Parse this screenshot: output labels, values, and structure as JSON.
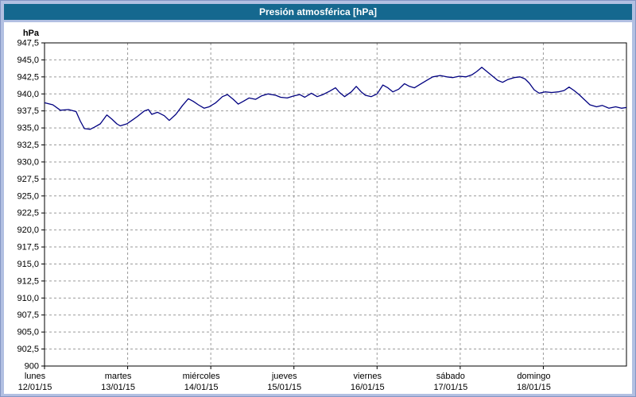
{
  "window": {
    "title": "Presión atmosférica [hPa]"
  },
  "colors": {
    "frame": "#b2c0e2",
    "titlebar": "#15688f",
    "title_text": "#ffffff",
    "plot_bg": "#ffffff",
    "plot_border": "#000000",
    "grid": "#9a9a9a",
    "line": "#000080",
    "text": "#000000"
  },
  "chart_data": {
    "type": "line",
    "title": "Presión atmosférica [hPa]",
    "xlabel": "",
    "ylabel": "hPa",
    "ylim": [
      900,
      947.5
    ],
    "ytick_step": 2.5,
    "ytick_labels": [
      "900",
      "902,5",
      "905,0",
      "907,5",
      "910,0",
      "912,5",
      "915,0",
      "917,5",
      "920,0",
      "922,5",
      "925,0",
      "927,5",
      "930,0",
      "932,5",
      "935,0",
      "937,5",
      "940,0",
      "942,5",
      "945,0",
      "947,5"
    ],
    "xlim_days": [
      0,
      7
    ],
    "x_categories": [
      {
        "day": "lunes",
        "date": "12/01/15"
      },
      {
        "day": "martes",
        "date": "13/01/15"
      },
      {
        "day": "miércoles",
        "date": "14/01/15"
      },
      {
        "day": "jueves",
        "date": "15/01/15"
      },
      {
        "day": "viernes",
        "date": "16/01/15"
      },
      {
        "day": "sábado",
        "date": "17/01/15"
      },
      {
        "day": "domingo",
        "date": "18/01/15"
      }
    ],
    "grid": true,
    "legend": "none",
    "series": [
      {
        "name": "Presión atmosférica",
        "color": "#000080",
        "x_day": [
          0,
          0.1,
          0.19,
          0.29,
          0.38,
          0.43,
          0.48,
          0.55,
          0.6,
          0.67,
          0.75,
          0.81,
          0.87,
          0.91,
          0.99,
          1.05,
          1.12,
          1.2,
          1.25,
          1.29,
          1.36,
          1.44,
          1.5,
          1.58,
          1.66,
          1.73,
          1.79,
          1.85,
          1.92,
          1.98,
          2.06,
          2.14,
          2.2,
          2.27,
          2.33,
          2.39,
          2.46,
          2.54,
          2.61,
          2.69,
          2.78,
          2.84,
          2.92,
          3.0,
          3.07,
          3.13,
          3.21,
          3.28,
          3.35,
          3.43,
          3.5,
          3.55,
          3.61,
          3.69,
          3.75,
          3.81,
          3.86,
          3.93,
          4.0,
          4.07,
          4.13,
          4.19,
          4.26,
          4.33,
          4.39,
          4.45,
          4.53,
          4.6,
          4.67,
          4.76,
          4.84,
          4.91,
          4.99,
          5.07,
          5.14,
          5.2,
          5.26,
          5.31,
          5.38,
          5.45,
          5.51,
          5.57,
          5.65,
          5.72,
          5.78,
          5.83,
          5.89,
          5.95,
          6.02,
          6.1,
          6.18,
          6.25,
          6.31,
          6.37,
          6.43,
          6.49,
          6.56,
          6.64,
          6.71,
          6.79,
          6.87,
          6.94,
          7.0
        ],
        "values": [
          938.7,
          938.4,
          937.6,
          937.7,
          937.4,
          936.0,
          934.9,
          934.8,
          935.1,
          935.6,
          936.9,
          936.3,
          935.6,
          935.3,
          935.6,
          936.1,
          936.7,
          937.5,
          937.7,
          937.0,
          937.3,
          936.8,
          936.1,
          937.0,
          938.3,
          939.3,
          938.9,
          938.4,
          937.9,
          938.1,
          938.7,
          939.6,
          939.9,
          939.2,
          938.5,
          938.9,
          939.4,
          939.2,
          939.7,
          940.0,
          939.8,
          939.5,
          939.4,
          939.7,
          939.9,
          939.5,
          940.1,
          939.6,
          939.9,
          940.4,
          940.9,
          940.2,
          939.6,
          940.3,
          941.1,
          940.3,
          939.8,
          939.6,
          940.0,
          941.3,
          940.9,
          940.3,
          940.7,
          941.5,
          941.1,
          940.9,
          941.5,
          942.0,
          942.5,
          942.7,
          942.5,
          942.4,
          942.6,
          942.5,
          942.8,
          943.3,
          943.9,
          943.4,
          942.7,
          942.0,
          941.7,
          942.1,
          942.4,
          942.5,
          942.2,
          941.6,
          940.6,
          940.1,
          940.3,
          940.2,
          940.3,
          940.5,
          941.0,
          940.5,
          939.9,
          939.2,
          938.4,
          938.1,
          938.3,
          937.9,
          938.1,
          937.9,
          938.0
        ]
      }
    ]
  }
}
